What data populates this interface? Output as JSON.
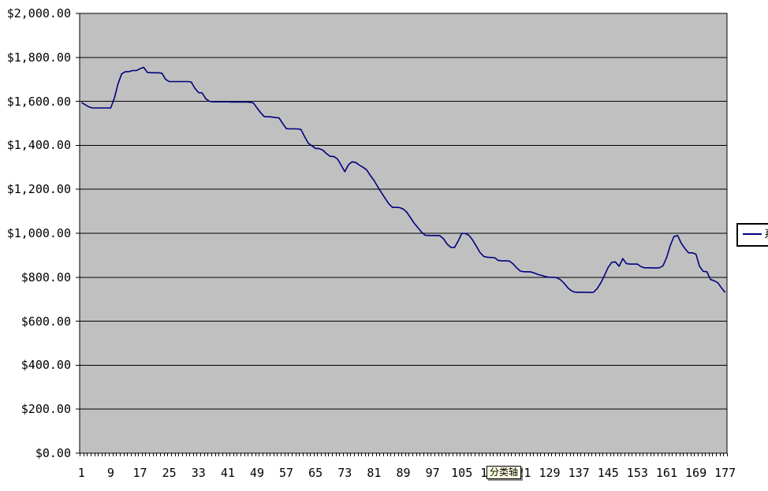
{
  "window": {
    "background": "#FFFFFF"
  },
  "tooltip": {
    "label": "分类轴"
  },
  "legend": {
    "label_fragment": "系",
    "line_color": "#000080"
  },
  "colors": {
    "plot_background": "#C0C0C0",
    "gridline": "#000000",
    "axis": "#000000",
    "series_line": "#000080",
    "tooltip_background": "#FFFFE1",
    "legend_background": "#FFFFFF"
  },
  "chart_data": {
    "type": "line",
    "title": "",
    "xlabel": "",
    "ylabel": "",
    "grid": "horizontal",
    "legend_position": "right",
    "plot_background": "#C0C0C0",
    "gridline_color": "#000000",
    "ylim": [
      0,
      2000
    ],
    "y_tick_step": 200,
    "y_tick_labels_top_to_bottom": [
      "$2,000.00",
      "$1,800.00",
      "$1,600.00",
      "$1,400.00",
      "$1,200.00",
      "$1,000.00",
      "$800.00",
      "$600.00",
      "$400.00",
      "$200.00",
      "$0.00"
    ],
    "x_count": 177,
    "x_tick_start": 1,
    "x_tick_step": 8,
    "x_tick_labels": [
      "1",
      "9",
      "17",
      "25",
      "33",
      "41",
      "49",
      "57",
      "65",
      "73",
      "81",
      "89",
      "97",
      "105",
      "113",
      "121",
      "129",
      "137",
      "145",
      "153",
      "161",
      "169",
      "177"
    ],
    "series": [
      {
        "name_fragment": "系",
        "color": "#000080",
        "values": [
          1595,
          1585,
          1575,
          1570,
          1570,
          1570,
          1570,
          1570,
          1570,
          1615,
          1680,
          1725,
          1735,
          1735,
          1740,
          1740,
          1748,
          1755,
          1732,
          1730,
          1730,
          1730,
          1728,
          1700,
          1690,
          1690,
          1690,
          1690,
          1690,
          1690,
          1688,
          1660,
          1640,
          1638,
          1612,
          1600,
          1598,
          1598,
          1598,
          1598,
          1598,
          1597,
          1597,
          1597,
          1597,
          1597,
          1596,
          1593,
          1570,
          1548,
          1530,
          1530,
          1529,
          1526,
          1525,
          1500,
          1476,
          1475,
          1475,
          1475,
          1472,
          1440,
          1410,
          1398,
          1386,
          1385,
          1378,
          1362,
          1350,
          1349,
          1338,
          1310,
          1280,
          1312,
          1325,
          1322,
          1310,
          1300,
          1288,
          1262,
          1240,
          1212,
          1185,
          1160,
          1135,
          1118,
          1118,
          1117,
          1110,
          1095,
          1070,
          1045,
          1025,
          1005,
          991,
          990,
          990,
          990,
          989,
          975,
          950,
          936,
          935,
          965,
          1000,
          999,
          990,
          968,
          940,
          912,
          895,
          891,
          890,
          889,
          876,
          875,
          875,
          874,
          861,
          843,
          828,
          825,
          825,
          824,
          818,
          812,
          808,
          802,
          800,
          800,
          798,
          788,
          772,
          752,
          738,
          732,
          732,
          732,
          732,
          731,
          732,
          748,
          775,
          808,
          845,
          868,
          870,
          850,
          885,
          862,
          860,
          860,
          860,
          848,
          843,
          843,
          843,
          842,
          843,
          852,
          890,
          945,
          985,
          990,
          955,
          930,
          911,
          911,
          905,
          850,
          827,
          825,
          790,
          784,
          775,
          752,
          731
        ]
      }
    ]
  }
}
